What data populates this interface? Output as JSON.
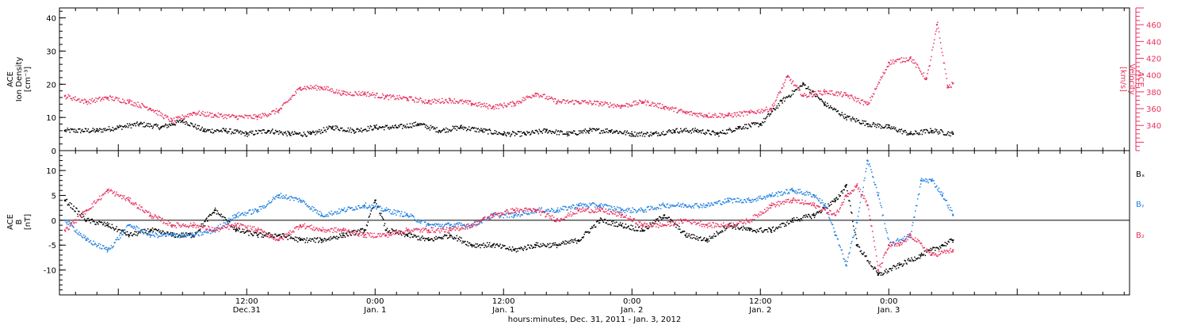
{
  "colors": {
    "density": "#000000",
    "velocity": "#e8325f",
    "bx": "#000000",
    "by": "#1e7fe0",
    "bz": "#e8325f",
    "axis": "#000000"
  },
  "time_axis": {
    "label": "hours:minutes, Dec. 31, 2011 - Jan. 3, 2012",
    "range_hours": [
      -17.5,
      82.5
    ],
    "ticks": [
      {
        "hour": 0,
        "time": "12:00",
        "date": "Dec.31"
      },
      {
        "hour": 12,
        "time": "0:00",
        "date": "Jan. 1"
      },
      {
        "hour": 24,
        "time": "12:00",
        "date": "Jan. 1"
      },
      {
        "hour": 36,
        "time": "0:00",
        "date": "Jan. 2"
      },
      {
        "hour": 48,
        "time": "12:00",
        "date": "Jan. 2"
      },
      {
        "hour": 60,
        "time": "0:00",
        "date": "Jan. 3"
      }
    ]
  },
  "top_panel": {
    "left_label": [
      "ACE",
      "Ion Density",
      "[cm⁻³]"
    ],
    "right_label": [
      "ACE",
      "Velocity",
      "[km/s]"
    ]
  },
  "bottom_panel": {
    "left_label": [
      "ACE",
      "B",
      "[nT]"
    ],
    "legend": [
      "Bₓ",
      "Bᵧ",
      "B₂"
    ]
  },
  "chart_data": [
    {
      "type": "scatter",
      "title": "",
      "xlabel": "hours:minutes, Dec. 31, 2011 - Jan. 3, 2012",
      "ylabel": "ACE Ion Density [cm⁻³]",
      "y2label": "ACE Velocity [km/s]",
      "x_unit": "hours after 2011-12-31 00:00 UT",
      "xlim": [
        -17.5,
        82.5
      ],
      "ylim": [
        0,
        43
      ],
      "y2lim": [
        310,
        480
      ],
      "yticks": [
        0,
        10,
        20,
        30,
        40
      ],
      "y2ticks": [
        340,
        360,
        380,
        400,
        420,
        440,
        460
      ],
      "series": [
        {
          "name": "Ion Density",
          "axis": "left",
          "x": [
            -17,
            -14,
            -12,
            -10,
            -8,
            -6,
            -4,
            -2,
            0,
            2,
            4,
            6,
            8,
            10,
            12,
            14,
            16,
            18,
            20,
            22,
            24,
            26,
            28,
            30,
            32,
            34,
            36,
            38,
            40,
            42,
            44,
            46,
            48,
            50,
            52,
            54,
            56,
            58,
            60,
            62,
            64,
            66
          ],
          "y": [
            6,
            6,
            7,
            8,
            7,
            9,
            6,
            6,
            5,
            6,
            5,
            5,
            7,
            6,
            7,
            7,
            8,
            6,
            7,
            6,
            5,
            5,
            6,
            5,
            6,
            6,
            5,
            5,
            6,
            6,
            5,
            7,
            8,
            15,
            20,
            14,
            10,
            8,
            7,
            5,
            6,
            5
          ]
        },
        {
          "name": "Velocity",
          "axis": "right",
          "x": [
            -17,
            -15,
            -13,
            -11,
            -9,
            -7,
            -5,
            -3,
            -1,
            1,
            3,
            5,
            7,
            9,
            11,
            13,
            15,
            17,
            19,
            21,
            23,
            25,
            27,
            29,
            31,
            33,
            35,
            37,
            39,
            41,
            43,
            45,
            47,
            49,
            50.5,
            52,
            54,
            56,
            58,
            60,
            62,
            63.5,
            64.5,
            65.5,
            66
          ],
          "y": [
            375,
            368,
            373,
            368,
            360,
            345,
            355,
            352,
            350,
            350,
            358,
            385,
            385,
            378,
            378,
            374,
            372,
            368,
            370,
            366,
            362,
            366,
            378,
            368,
            368,
            366,
            363,
            368,
            362,
            355,
            352,
            352,
            355,
            360,
            398,
            375,
            380,
            376,
            365,
            415,
            420,
            395,
            460,
            385,
            390
          ]
        }
      ]
    },
    {
      "type": "scatter",
      "title": "",
      "xlabel": "hours:minutes, Dec. 31, 2011 - Jan. 3, 2012",
      "ylabel": "ACE B [nT]",
      "x_unit": "hours after 2011-12-31 00:00 UT",
      "xlim": [
        -17.5,
        82.5
      ],
      "ylim": [
        -15,
        14
      ],
      "yticks": [
        -10,
        -5,
        0,
        5,
        10
      ],
      "zero_line": true,
      "legend_position": "right",
      "series": [
        {
          "name": "Bₓ",
          "x": [
            -17,
            -15,
            -13,
            -11,
            -9,
            -7,
            -5,
            -3,
            -1,
            1,
            3,
            5,
            7,
            9,
            11,
            12,
            13,
            15,
            17,
            19,
            21,
            23,
            25,
            27,
            29,
            31,
            33,
            35,
            37,
            39,
            41,
            43,
            45,
            47,
            49,
            51,
            53,
            55,
            56,
            57,
            59,
            61,
            63,
            65,
            66
          ],
          "y": [
            4,
            0,
            -1,
            -3,
            -2,
            -3,
            -3,
            2,
            -2,
            -3,
            -3,
            -4,
            -4,
            -3,
            -2,
            4,
            -2,
            -3,
            -4,
            -3,
            -5,
            -5,
            -6,
            -5,
            -5,
            -4,
            0,
            -1,
            -2,
            1,
            -3,
            -4,
            -1,
            -2,
            -2,
            0,
            1,
            4,
            7,
            -5,
            -11,
            -9,
            -7,
            -5,
            -4
          ]
        },
        {
          "name": "Bᵧ",
          "x": [
            -17,
            -15,
            -13,
            -11,
            -9,
            -7,
            -5,
            -3,
            -1,
            1,
            3,
            5,
            7,
            9,
            11,
            13,
            15,
            17,
            19,
            21,
            23,
            25,
            27,
            29,
            31,
            33,
            35,
            37,
            39,
            41,
            43,
            45,
            47,
            49,
            51,
            53,
            54,
            55,
            56,
            57,
            58,
            59,
            60,
            62,
            63,
            64,
            65,
            66
          ],
          "y": [
            0,
            -4,
            -6,
            -1,
            -3,
            -3,
            -3,
            -2,
            1,
            2,
            5,
            4,
            1,
            2,
            3,
            2,
            1,
            -1,
            -1,
            -1,
            1,
            1,
            2,
            2,
            3,
            3,
            2,
            2,
            3,
            3,
            3,
            4,
            4,
            5,
            6,
            5,
            3,
            -3,
            -9,
            0,
            12,
            5,
            -5,
            -3,
            8,
            8,
            5,
            1
          ]
        },
        {
          "name": "B₂",
          "x": [
            -17,
            -15,
            -13,
            -11,
            -9,
            -7,
            -5,
            -3,
            -1,
            1,
            3,
            5,
            7,
            9,
            11,
            13,
            15,
            17,
            19,
            21,
            23,
            25,
            27,
            29,
            31,
            33,
            35,
            37,
            39,
            41,
            43,
            45,
            47,
            49,
            51,
            53,
            55,
            56,
            57,
            58,
            59,
            60,
            61,
            62,
            64,
            66
          ],
          "y": [
            -2,
            2,
            6,
            4,
            1,
            -1,
            -1,
            -2,
            -1,
            -2,
            -4,
            -1,
            -2,
            -2,
            -3,
            -3,
            -2,
            -2,
            -2,
            -1,
            1,
            2,
            2,
            0,
            2,
            2,
            1,
            -1,
            -1,
            0,
            -1,
            -1,
            0,
            3,
            4,
            3,
            1,
            5,
            7,
            3,
            -10,
            -5,
            -5,
            -3,
            -7,
            -6
          ]
        }
      ]
    }
  ]
}
